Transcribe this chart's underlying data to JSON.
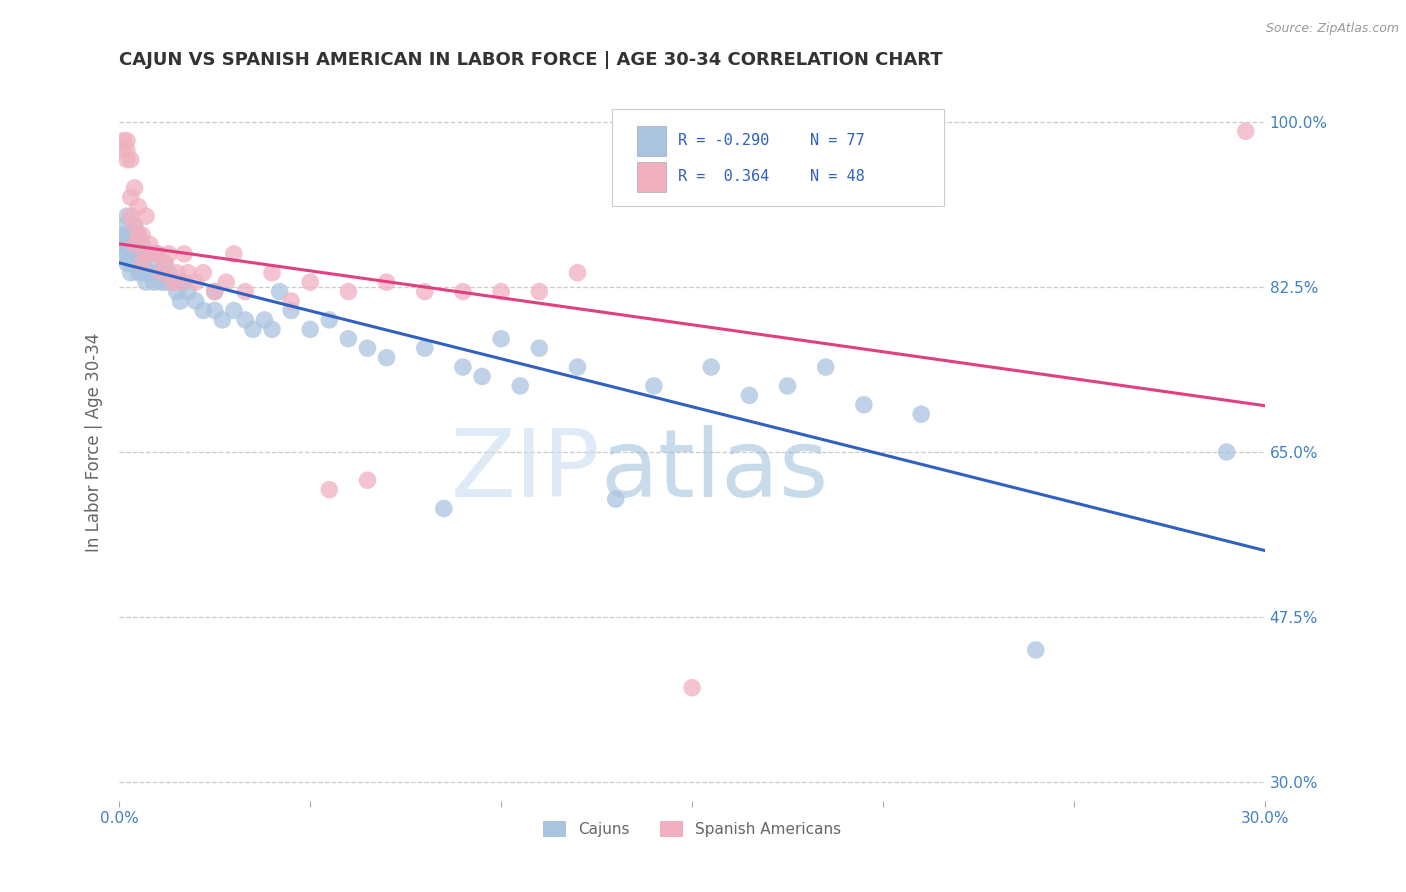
{
  "title": "CAJUN VS SPANISH AMERICAN IN LABOR FORCE | AGE 30-34 CORRELATION CHART",
  "source": "Source: ZipAtlas.com",
  "ylabel": "In Labor Force | Age 30-34",
  "xlim": [
    0.0,
    0.3
  ],
  "ylim": [
    0.28,
    1.04
  ],
  "yticks": [
    0.3,
    0.475,
    0.65,
    0.825,
    1.0
  ],
  "ytick_labels": [
    "30.0%",
    "47.5%",
    "65.0%",
    "82.5%",
    "100.0%"
  ],
  "xticks": [
    0.0,
    0.05,
    0.1,
    0.15,
    0.2,
    0.25,
    0.3
  ],
  "xtick_labels": [
    "0.0%",
    "",
    "",
    "",
    "",
    "",
    "30.0%"
  ],
  "cajun_R": -0.29,
  "cajun_N": 77,
  "spanish_R": 0.364,
  "spanish_N": 48,
  "cajun_color": "#aac4e0",
  "spanish_color": "#f0b0c0",
  "cajun_line_color": "#3060c0",
  "spanish_line_color": "#e04080",
  "watermark_zip": "ZIP",
  "watermark_atlas": "atlas",
  "background_color": "#ffffff",
  "grid_color": "#cccccc",
  "title_color": "#333333",
  "axis_label_color": "#666666",
  "tick_label_color": "#4080c0",
  "cajun_x": [
    0.001,
    0.001,
    0.001,
    0.001,
    0.002,
    0.002,
    0.002,
    0.002,
    0.002,
    0.003,
    0.003,
    0.003,
    0.003,
    0.003,
    0.004,
    0.004,
    0.004,
    0.004,
    0.005,
    0.005,
    0.005,
    0.006,
    0.006,
    0.006,
    0.007,
    0.007,
    0.007,
    0.008,
    0.008,
    0.009,
    0.009,
    0.01,
    0.01,
    0.011,
    0.012,
    0.012,
    0.013,
    0.014,
    0.015,
    0.016,
    0.017,
    0.018,
    0.02,
    0.022,
    0.025,
    0.025,
    0.027,
    0.03,
    0.033,
    0.035,
    0.038,
    0.04,
    0.042,
    0.045,
    0.05,
    0.055,
    0.06,
    0.065,
    0.07,
    0.08,
    0.085,
    0.09,
    0.095,
    0.1,
    0.105,
    0.11,
    0.12,
    0.13,
    0.14,
    0.155,
    0.165,
    0.175,
    0.185,
    0.195,
    0.21,
    0.24,
    0.29
  ],
  "cajun_y": [
    0.87,
    0.89,
    0.86,
    0.88,
    0.9,
    0.88,
    0.86,
    0.87,
    0.85,
    0.88,
    0.86,
    0.85,
    0.84,
    0.87,
    0.89,
    0.87,
    0.85,
    0.86,
    0.88,
    0.86,
    0.84,
    0.87,
    0.85,
    0.84,
    0.86,
    0.84,
    0.83,
    0.86,
    0.84,
    0.85,
    0.83,
    0.86,
    0.84,
    0.83,
    0.85,
    0.83,
    0.84,
    0.83,
    0.82,
    0.81,
    0.83,
    0.82,
    0.81,
    0.8,
    0.82,
    0.8,
    0.79,
    0.8,
    0.79,
    0.78,
    0.79,
    0.78,
    0.82,
    0.8,
    0.78,
    0.79,
    0.77,
    0.76,
    0.75,
    0.76,
    0.59,
    0.74,
    0.73,
    0.77,
    0.72,
    0.76,
    0.74,
    0.6,
    0.72,
    0.74,
    0.71,
    0.72,
    0.74,
    0.7,
    0.69,
    0.44,
    0.65
  ],
  "spanish_x": [
    0.001,
    0.001,
    0.002,
    0.002,
    0.002,
    0.003,
    0.003,
    0.003,
    0.004,
    0.004,
    0.004,
    0.005,
    0.005,
    0.006,
    0.006,
    0.007,
    0.007,
    0.008,
    0.009,
    0.01,
    0.011,
    0.012,
    0.013,
    0.014,
    0.015,
    0.016,
    0.017,
    0.018,
    0.02,
    0.022,
    0.025,
    0.028,
    0.03,
    0.033,
    0.04,
    0.045,
    0.05,
    0.055,
    0.06,
    0.065,
    0.07,
    0.08,
    0.09,
    0.1,
    0.11,
    0.12,
    0.15,
    0.295
  ],
  "spanish_y": [
    0.98,
    0.97,
    0.98,
    0.97,
    0.96,
    0.96,
    0.92,
    0.9,
    0.93,
    0.89,
    0.87,
    0.91,
    0.88,
    0.88,
    0.85,
    0.9,
    0.86,
    0.87,
    0.86,
    0.86,
    0.84,
    0.85,
    0.86,
    0.83,
    0.84,
    0.83,
    0.86,
    0.84,
    0.83,
    0.84,
    0.82,
    0.83,
    0.86,
    0.82,
    0.84,
    0.81,
    0.83,
    0.61,
    0.82,
    0.62,
    0.83,
    0.82,
    0.82,
    0.82,
    0.82,
    0.84,
    0.4,
    0.99
  ]
}
